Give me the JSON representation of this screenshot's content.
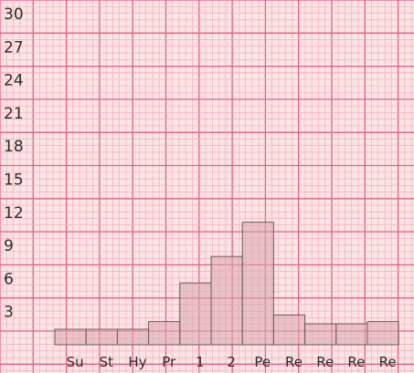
{
  "chart_data": {
    "type": "bar",
    "categories": [
      "Su",
      "St",
      "Hy",
      "Pr",
      "1",
      "2",
      "Pe",
      "Re",
      "Re",
      "Re",
      "Re"
    ],
    "values": [
      1.4,
      1.4,
      1.4,
      2.1,
      5.6,
      8.0,
      11.1,
      2.7,
      1.9,
      1.9,
      2.1
    ],
    "y_ticks": [
      "3",
      "6",
      "9",
      "12",
      "15",
      "18",
      "21",
      "24",
      "27",
      "30"
    ],
    "ylim": [
      0,
      30
    ],
    "title": "",
    "xlabel": "",
    "ylabel": "",
    "grid": true,
    "colors": {
      "paper": "#fbe3e6",
      "grid_minor": "#f2a6b6",
      "grid_major": "#e3607f",
      "bar_fill": "#d9a7ae",
      "bar_edge": "#6e5a5c",
      "text": "#2b2b2b"
    }
  }
}
